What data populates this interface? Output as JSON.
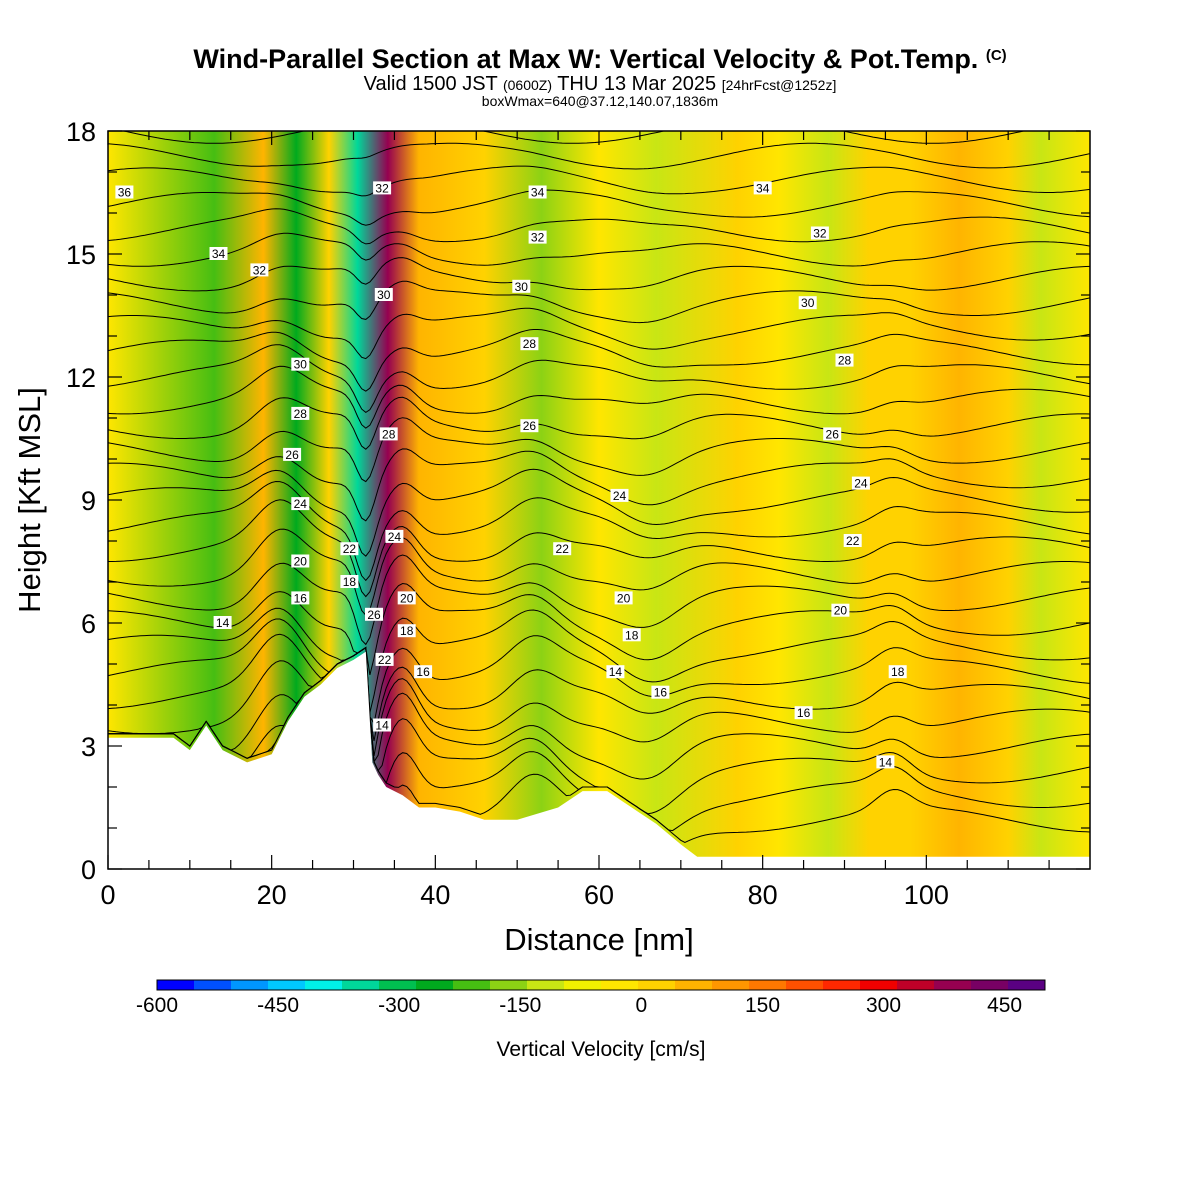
{
  "title": {
    "main": "Wind-Parallel Section at Max W: Vertical Velocity & Pot.Temp.",
    "copyright": "(C)",
    "valid_a": "Valid 1500 JST",
    "valid_utc": "(0600Z)",
    "valid_b": "THU 13 Mar 2025",
    "forecast": "[24hrFcst@1252z]",
    "box": "boxWmax=640@37.12,140.07,1836m"
  },
  "chart_data": {
    "type": "heatmap",
    "description_fields": "vertical velocity shading with potential temperature contours",
    "xlabel": "Distance [nm]",
    "ylabel": "Height [Kft MSL]",
    "xlim": [
      0,
      120
    ],
    "ylim": [
      0,
      18
    ],
    "xticks": [
      0,
      20,
      40,
      60,
      80,
      100
    ],
    "yticks": [
      0,
      3,
      6,
      9,
      12,
      15,
      18
    ],
    "colorbar": {
      "label": "Vertical Velocity [cm/s]",
      "min": -600,
      "max": 500,
      "step": 50,
      "tick_values": [
        -600,
        -450,
        -300,
        -150,
        0,
        150,
        300,
        450
      ],
      "tick_labels": [
        "-600",
        "-450",
        "-300",
        "-150",
        "0",
        "150",
        "300",
        "450"
      ],
      "colors": [
        "#0000ff",
        "#0050ff",
        "#0096ff",
        "#00c8ff",
        "#00f0e8",
        "#00d79a",
        "#00c050",
        "#00aa1e",
        "#46be12",
        "#8cd214",
        "#c8e614",
        "#f0f000",
        "#ffe600",
        "#ffd200",
        "#ffb400",
        "#ff9600",
        "#ff7800",
        "#ff5000",
        "#ff2800",
        "#f00000",
        "#be0028",
        "#960050",
        "#780064",
        "#5a0082"
      ]
    },
    "velocity_bands_nm": [
      {
        "x": 13,
        "value": -160
      },
      {
        "x": 19,
        "value": 120
      },
      {
        "x": 23,
        "value": -230
      },
      {
        "x": 27,
        "value": 90
      },
      {
        "x": 30.5,
        "value": -330
      },
      {
        "x": 34.2,
        "value": 460
      },
      {
        "x": 38,
        "value": 110
      },
      {
        "x": 46,
        "value": 60
      },
      {
        "x": 53,
        "value": -120
      },
      {
        "x": 60,
        "value": 40
      },
      {
        "x": 67,
        "value": -60
      },
      {
        "x": 77,
        "value": 70
      },
      {
        "x": 82,
        "value": 30
      },
      {
        "x": 88,
        "value": -60
      },
      {
        "x": 93,
        "value": 90
      },
      {
        "x": 98,
        "value": 60
      },
      {
        "x": 104,
        "value": 110
      },
      {
        "x": 110,
        "value": 50
      },
      {
        "x": 114,
        "value": -60
      }
    ],
    "terrain_kft": [
      [
        0,
        3.2
      ],
      [
        4,
        3.2
      ],
      [
        8,
        3.2
      ],
      [
        10,
        2.9
      ],
      [
        12,
        3.5
      ],
      [
        14,
        2.9
      ],
      [
        17,
        2.6
      ],
      [
        20,
        2.8
      ],
      [
        22,
        3.6
      ],
      [
        24,
        4.2
      ],
      [
        26,
        4.5
      ],
      [
        28,
        4.9
      ],
      [
        30,
        5.1
      ],
      [
        31.5,
        5.3
      ],
      [
        32.3,
        2.6
      ],
      [
        33,
        2.3
      ],
      [
        34,
        2.0
      ],
      [
        36,
        1.8
      ],
      [
        38,
        1.5
      ],
      [
        40,
        1.5
      ],
      [
        43,
        1.4
      ],
      [
        46,
        1.2
      ],
      [
        50,
        1.2
      ],
      [
        55,
        1.5
      ],
      [
        58,
        1.9
      ],
      [
        61,
        1.9
      ],
      [
        64,
        1.5
      ],
      [
        67,
        1.1
      ],
      [
        70,
        0.6
      ],
      [
        72,
        0.3
      ],
      [
        80,
        0.3
      ],
      [
        90,
        0.3
      ],
      [
        100,
        0.3
      ],
      [
        110,
        0.3
      ],
      [
        120,
        0.3
      ]
    ],
    "theta_contour_labels": [
      {
        "value": "36",
        "x": 2,
        "y": 16.5
      },
      {
        "value": "34",
        "x": 13.5,
        "y": 15.0
      },
      {
        "value": "32",
        "x": 18.5,
        "y": 14.6
      },
      {
        "value": "32",
        "x": 33.5,
        "y": 16.6
      },
      {
        "value": "30",
        "x": 33.7,
        "y": 14.0
      },
      {
        "value": "30",
        "x": 23.5,
        "y": 12.3
      },
      {
        "value": "28",
        "x": 23.5,
        "y": 11.1
      },
      {
        "value": "28",
        "x": 34.3,
        "y": 10.6
      },
      {
        "value": "26",
        "x": 22.5,
        "y": 10.1
      },
      {
        "value": "24",
        "x": 23.5,
        "y": 8.9
      },
      {
        "value": "24",
        "x": 35.0,
        "y": 8.1
      },
      {
        "value": "22",
        "x": 29.5,
        "y": 7.8
      },
      {
        "value": "20",
        "x": 23.5,
        "y": 7.5
      },
      {
        "value": "18",
        "x": 29.5,
        "y": 7.0
      },
      {
        "value": "16",
        "x": 23.5,
        "y": 6.6
      },
      {
        "value": "14",
        "x": 14.0,
        "y": 6.0
      },
      {
        "value": "26",
        "x": 32.5,
        "y": 6.2
      },
      {
        "value": "20",
        "x": 36.5,
        "y": 6.6
      },
      {
        "value": "18",
        "x": 36.5,
        "y": 5.8
      },
      {
        "value": "16",
        "x": 38.5,
        "y": 4.8
      },
      {
        "value": "22",
        "x": 33.8,
        "y": 5.1
      },
      {
        "value": "14",
        "x": 33.5,
        "y": 3.5
      },
      {
        "value": "34",
        "x": 52.5,
        "y": 16.5
      },
      {
        "value": "32",
        "x": 52.5,
        "y": 15.4
      },
      {
        "value": "30",
        "x": 50.5,
        "y": 14.2
      },
      {
        "value": "28",
        "x": 51.5,
        "y": 12.8
      },
      {
        "value": "26",
        "x": 51.5,
        "y": 10.8
      },
      {
        "value": "24",
        "x": 62.5,
        "y": 9.1
      },
      {
        "value": "22",
        "x": 55.5,
        "y": 7.8
      },
      {
        "value": "20",
        "x": 63.0,
        "y": 6.6
      },
      {
        "value": "18",
        "x": 64.0,
        "y": 5.7
      },
      {
        "value": "14",
        "x": 62.0,
        "y": 4.8
      },
      {
        "value": "16",
        "x": 67.5,
        "y": 4.3
      },
      {
        "value": "34",
        "x": 80.0,
        "y": 16.6
      },
      {
        "value": "32",
        "x": 87.0,
        "y": 15.5
      },
      {
        "value": "30",
        "x": 85.5,
        "y": 13.8
      },
      {
        "value": "28",
        "x": 90.0,
        "y": 12.4
      },
      {
        "value": "26",
        "x": 88.5,
        "y": 10.6
      },
      {
        "value": "24",
        "x": 92.0,
        "y": 9.4
      },
      {
        "value": "22",
        "x": 91.0,
        "y": 8.0
      },
      {
        "value": "20",
        "x": 89.5,
        "y": 6.3
      },
      {
        "value": "18",
        "x": 96.5,
        "y": 4.8
      },
      {
        "value": "16",
        "x": 85.0,
        "y": 3.8
      },
      {
        "value": "14",
        "x": 95.0,
        "y": 2.6
      }
    ]
  }
}
